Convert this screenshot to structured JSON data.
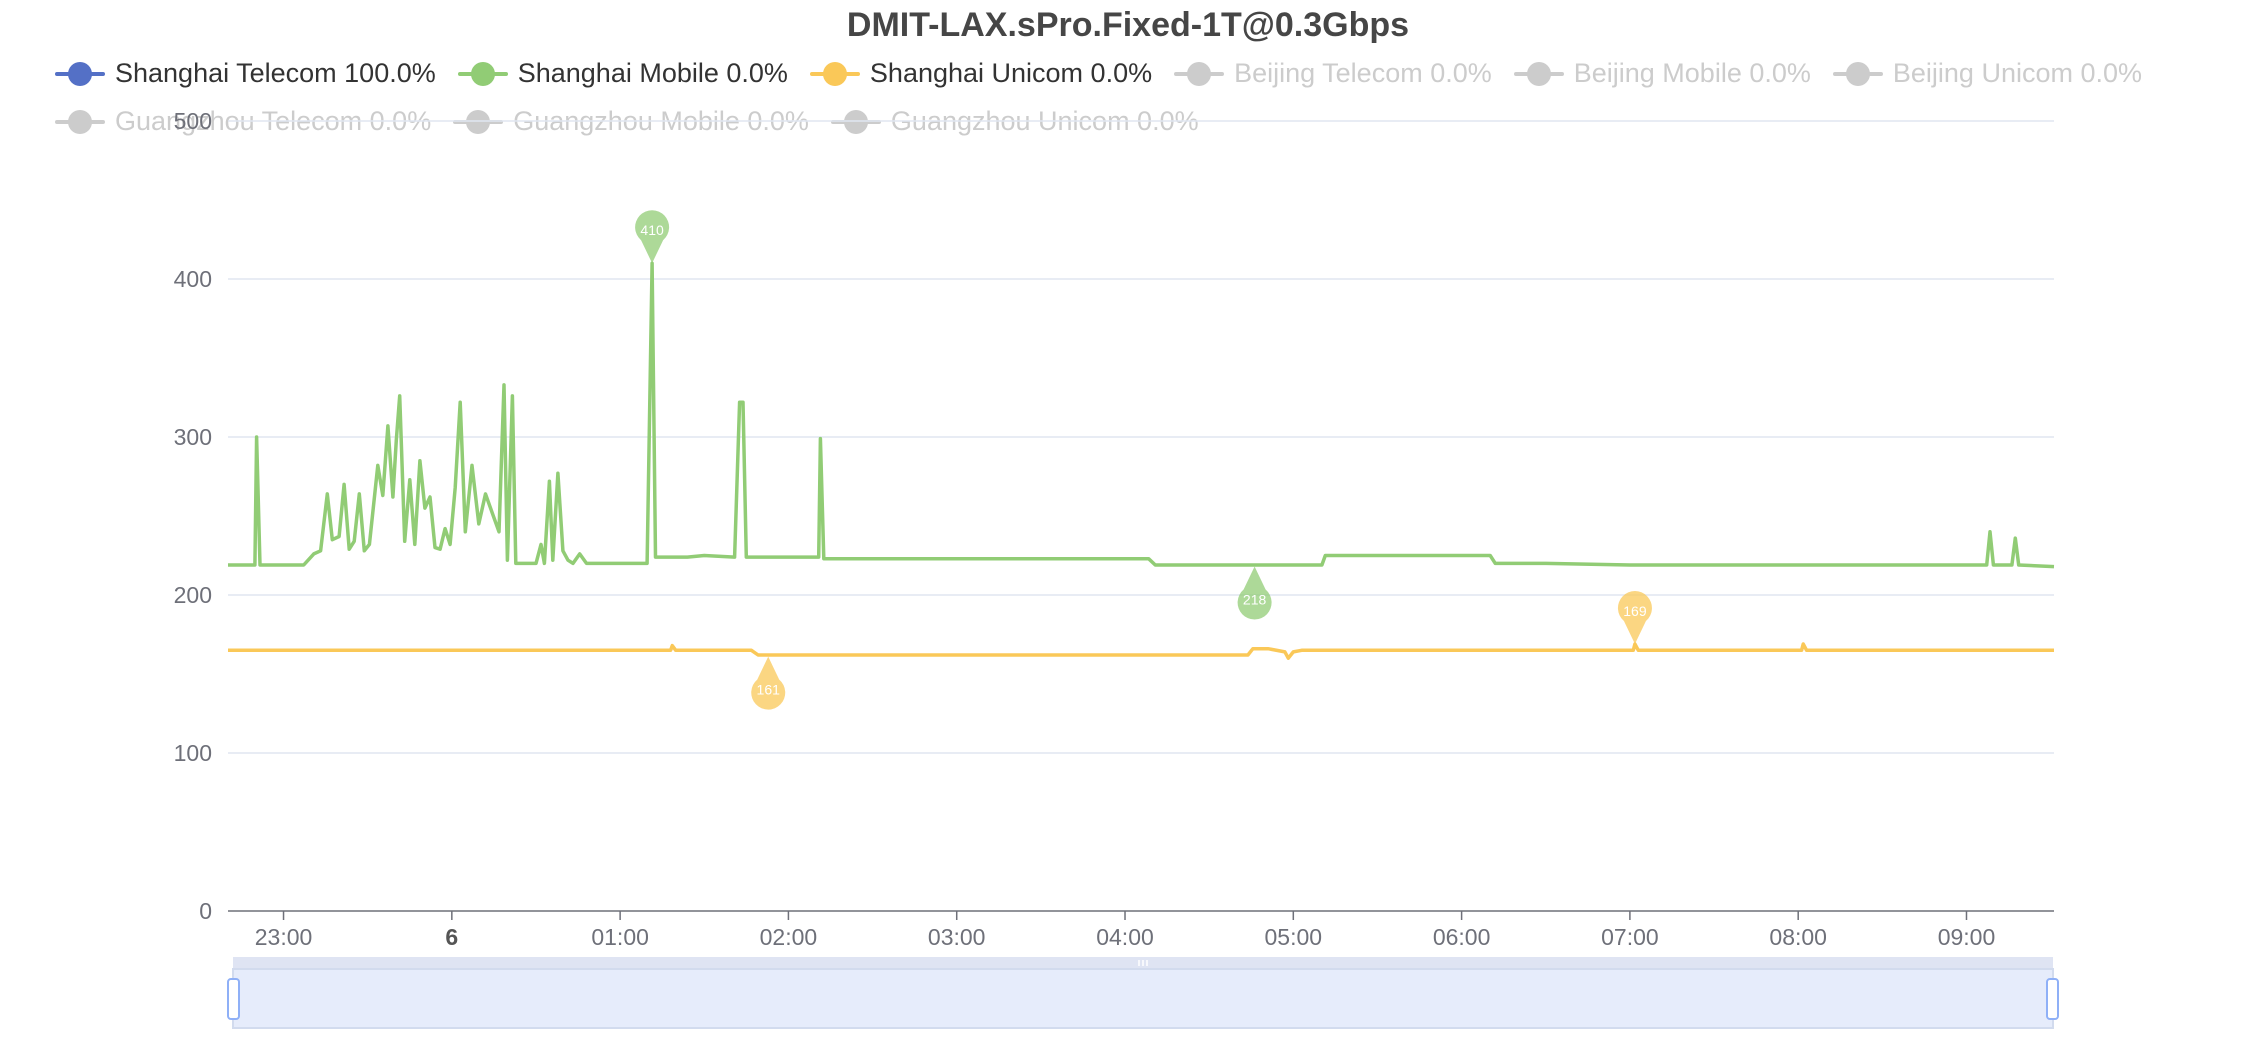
{
  "chart_data": {
    "type": "line",
    "title": "DMIT-LAX.sPro.Fixed-1T@0.3Gbps",
    "ylim": [
      0,
      500
    ],
    "yticks": [
      0,
      100,
      200,
      300,
      400,
      500
    ],
    "x_range_hours": [
      22.67,
      33.52
    ],
    "xticks": [
      {
        "label": "23:00",
        "hour": 23.0,
        "bold": false
      },
      {
        "label": "6",
        "hour": 24.0,
        "bold": true
      },
      {
        "label": "01:00",
        "hour": 25.0,
        "bold": false
      },
      {
        "label": "02:00",
        "hour": 26.0,
        "bold": false
      },
      {
        "label": "03:00",
        "hour": 27.0,
        "bold": false
      },
      {
        "label": "04:00",
        "hour": 28.0,
        "bold": false
      },
      {
        "label": "05:00",
        "hour": 29.0,
        "bold": false
      },
      {
        "label": "06:00",
        "hour": 30.0,
        "bold": false
      },
      {
        "label": "07:00",
        "hour": 31.0,
        "bold": false
      },
      {
        "label": "08:00",
        "hour": 32.0,
        "bold": false
      },
      {
        "label": "09:00",
        "hour": 33.0,
        "bold": false
      }
    ],
    "grid": true,
    "legend_position": "top",
    "series": [
      {
        "name": "Shanghai Telecom 100.0%",
        "color": "#5470c6",
        "active": true,
        "points": []
      },
      {
        "name": "Shanghai Mobile 0.0%",
        "color": "#91cc75",
        "active": true,
        "points": [
          [
            22.67,
            219
          ],
          [
            22.83,
            219
          ],
          [
            22.84,
            300
          ],
          [
            22.86,
            219
          ],
          [
            23.0,
            219
          ],
          [
            23.12,
            219
          ],
          [
            23.18,
            226
          ],
          [
            23.22,
            228
          ],
          [
            23.26,
            264
          ],
          [
            23.29,
            235
          ],
          [
            23.33,
            237
          ],
          [
            23.36,
            270
          ],
          [
            23.39,
            229
          ],
          [
            23.42,
            234
          ],
          [
            23.45,
            264
          ],
          [
            23.48,
            228
          ],
          [
            23.51,
            232
          ],
          [
            23.56,
            282
          ],
          [
            23.59,
            263
          ],
          [
            23.62,
            307
          ],
          [
            23.65,
            262
          ],
          [
            23.67,
            298
          ],
          [
            23.69,
            326
          ],
          [
            23.72,
            234
          ],
          [
            23.75,
            273
          ],
          [
            23.78,
            232
          ],
          [
            23.81,
            285
          ],
          [
            23.84,
            255
          ],
          [
            23.87,
            262
          ],
          [
            23.9,
            230
          ],
          [
            23.93,
            229
          ],
          [
            23.96,
            242
          ],
          [
            23.99,
            232
          ],
          [
            24.02,
            268
          ],
          [
            24.05,
            322
          ],
          [
            24.08,
            240
          ],
          [
            24.12,
            282
          ],
          [
            24.16,
            245
          ],
          [
            24.2,
            264
          ],
          [
            24.24,
            252
          ],
          [
            24.28,
            240
          ],
          [
            24.31,
            333
          ],
          [
            24.33,
            222
          ],
          [
            24.36,
            326
          ],
          [
            24.38,
            220
          ],
          [
            24.5,
            220
          ],
          [
            24.53,
            232
          ],
          [
            24.55,
            220
          ],
          [
            24.58,
            272
          ],
          [
            24.6,
            222
          ],
          [
            24.63,
            277
          ],
          [
            24.66,
            228
          ],
          [
            24.69,
            222
          ],
          [
            24.72,
            220
          ],
          [
            24.76,
            226
          ],
          [
            24.8,
            220
          ],
          [
            25.0,
            220
          ],
          [
            25.16,
            220
          ],
          [
            25.19,
            410
          ],
          [
            25.21,
            224
          ],
          [
            25.4,
            224
          ],
          [
            25.5,
            225
          ],
          [
            25.68,
            224
          ],
          [
            25.71,
            322
          ],
          [
            25.73,
            322
          ],
          [
            25.75,
            224
          ],
          [
            25.9,
            224
          ],
          [
            26.0,
            224
          ],
          [
            26.18,
            224
          ],
          [
            26.19,
            299
          ],
          [
            26.21,
            223
          ],
          [
            26.5,
            223
          ],
          [
            27.0,
            223
          ],
          [
            27.5,
            223
          ],
          [
            28.0,
            223
          ],
          [
            28.14,
            223
          ],
          [
            28.18,
            219
          ],
          [
            28.5,
            219
          ],
          [
            28.76,
            219
          ],
          [
            28.8,
            219
          ],
          [
            29.0,
            219
          ],
          [
            29.17,
            219
          ],
          [
            29.19,
            225
          ],
          [
            29.5,
            225
          ],
          [
            29.8,
            225
          ],
          [
            30.17,
            225
          ],
          [
            30.2,
            220
          ],
          [
            30.5,
            220
          ],
          [
            31.0,
            219
          ],
          [
            31.5,
            219
          ],
          [
            32.0,
            219
          ],
          [
            32.5,
            219
          ],
          [
            33.0,
            219
          ],
          [
            33.12,
            219
          ],
          [
            33.14,
            240
          ],
          [
            33.16,
            219
          ],
          [
            33.27,
            219
          ],
          [
            33.29,
            236
          ],
          [
            33.31,
            219
          ],
          [
            33.52,
            218
          ]
        ],
        "markpoints": [
          {
            "label": "410",
            "x": 25.19,
            "y": 410
          },
          {
            "label": "218",
            "x": 28.77,
            "y": 218
          }
        ]
      },
      {
        "name": "Shanghai Unicom 0.0%",
        "color": "#fac858",
        "active": true,
        "points": [
          [
            22.67,
            165
          ],
          [
            23.0,
            165
          ],
          [
            23.5,
            165
          ],
          [
            24.0,
            165
          ],
          [
            24.5,
            165
          ],
          [
            25.0,
            165
          ],
          [
            25.3,
            165
          ],
          [
            25.31,
            168
          ],
          [
            25.33,
            165
          ],
          [
            25.78,
            165
          ],
          [
            25.82,
            162
          ],
          [
            26.0,
            162
          ],
          [
            26.5,
            162
          ],
          [
            27.0,
            162
          ],
          [
            27.5,
            162
          ],
          [
            28.0,
            162
          ],
          [
            28.5,
            162
          ],
          [
            28.73,
            162
          ],
          [
            28.76,
            166
          ],
          [
            28.85,
            166
          ],
          [
            28.95,
            164
          ],
          [
            28.97,
            160
          ],
          [
            29.0,
            164
          ],
          [
            29.05,
            165
          ],
          [
            29.5,
            165
          ],
          [
            30.0,
            165
          ],
          [
            30.5,
            165
          ],
          [
            31.0,
            165
          ],
          [
            31.02,
            165
          ],
          [
            31.03,
            169
          ],
          [
            31.05,
            165
          ],
          [
            31.5,
            165
          ],
          [
            32.02,
            165
          ],
          [
            32.03,
            169
          ],
          [
            32.05,
            165
          ],
          [
            32.5,
            165
          ],
          [
            33.0,
            165
          ],
          [
            33.52,
            165
          ]
        ],
        "markpoints": [
          {
            "label": "161",
            "x": 25.88,
            "y": 161
          },
          {
            "label": "169",
            "x": 31.03,
            "y": 169
          }
        ]
      },
      {
        "name": "Beijing Telecom 0.0%",
        "color": "#cccccc",
        "active": false,
        "points": []
      },
      {
        "name": "Beijing Mobile 0.0%",
        "color": "#cccccc",
        "active": false,
        "points": []
      },
      {
        "name": "Beijing Unicom 0.0%",
        "color": "#cccccc",
        "active": false,
        "points": []
      },
      {
        "name": "Guangzhou Telecom 0.0%",
        "color": "#cccccc",
        "active": false,
        "points": []
      },
      {
        "name": "Guangzhou Mobile 0.0%",
        "color": "#cccccc",
        "active": false,
        "points": []
      },
      {
        "name": "Guangzhou Unicom 0.0%",
        "color": "#cccccc",
        "active": false,
        "points": []
      }
    ],
    "datazoom": {
      "start_percent": 0,
      "end_percent": 100
    }
  }
}
